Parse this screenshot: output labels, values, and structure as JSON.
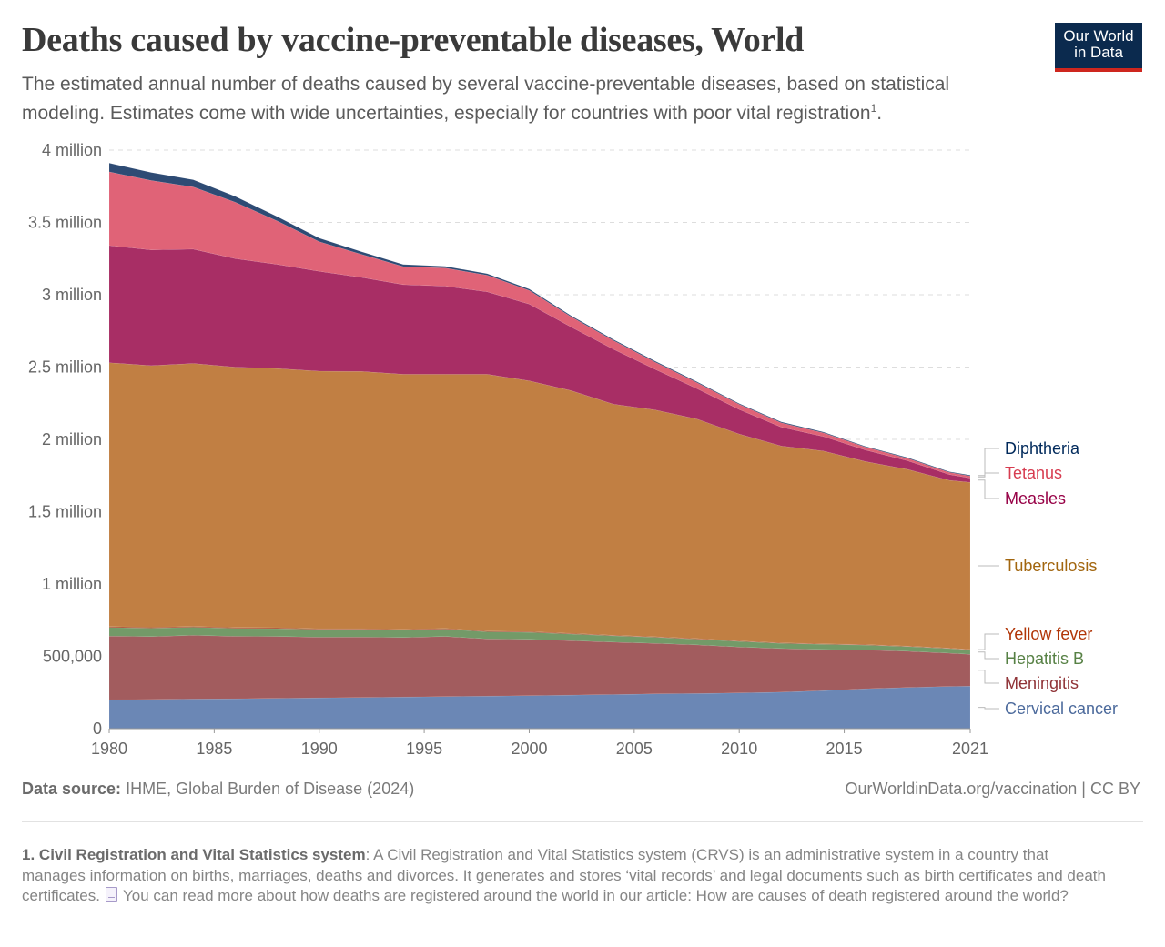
{
  "header": {
    "title": "Deaths caused by vaccine-preventable diseases, World",
    "subtitle": "The estimated annual number of deaths caused by several vaccine-preventable diseases, based on statistical modeling. Estimates come with wide uncertainties, especially for countries with poor vital registration",
    "subtitle_ref": "1",
    "subtitle_end": "."
  },
  "logo": {
    "line1": "Our World",
    "line2": "in Data",
    "bg_color": "#0b2a4e",
    "accent_color": "#ce261e"
  },
  "footer": {
    "source_label": "Data source:",
    "source_text": "IHME, Global Burden of Disease (2024)",
    "license": "OurWorldinData.org/vaccination | CC BY"
  },
  "footnote": {
    "number": "1.",
    "term": "Civil Registration and Vital Statistics system",
    "text": ": A Civil Registration and Vital Statistics system (CRVS) is an administrative system in a country that manages information on births, marriages, deaths and divorces. It generates and stores ‘vital records’ and legal documents such as birth certificates and death certificates.",
    "link_text": "You can read more about how deaths are registered around the world in our article: How are causes of death registered around the world?",
    "icon": "document-icon"
  },
  "chart_data": {
    "type": "area",
    "stacked": true,
    "title": "Deaths caused by vaccine-preventable diseases, World",
    "xlabel": "",
    "ylabel": "",
    "xlim": [
      1980,
      2021
    ],
    "ylim": [
      0,
      4000000
    ],
    "x_ticks": [
      "1980",
      "1985",
      "1990",
      "1995",
      "2000",
      "2005",
      "2010",
      "2015",
      "2021"
    ],
    "y_ticks": [
      {
        "value": 0,
        "label": "0"
      },
      {
        "value": 500000,
        "label": "500,000"
      },
      {
        "value": 1000000,
        "label": "1 million"
      },
      {
        "value": 1500000,
        "label": "1.5 million"
      },
      {
        "value": 2000000,
        "label": "2 million"
      },
      {
        "value": 2500000,
        "label": "2.5 million"
      },
      {
        "value": 3000000,
        "label": "3 million"
      },
      {
        "value": 3500000,
        "label": "3.5 million"
      },
      {
        "value": 4000000,
        "label": "4 million"
      }
    ],
    "grid": true,
    "legend_position": "right",
    "x": [
      1980,
      1982,
      1984,
      1986,
      1988,
      1990,
      1992,
      1994,
      1996,
      1998,
      2000,
      2002,
      2004,
      2006,
      2008,
      2010,
      2012,
      2014,
      2016,
      2018,
      2020,
      2021
    ],
    "series": [
      {
        "name": "Cervical cancer",
        "color": "#6b87b5",
        "label_color": "#4c6a9c",
        "values": [
          200000,
          202000,
          205000,
          207000,
          210000,
          213000,
          216000,
          219000,
          222000,
          225000,
          228000,
          232000,
          236000,
          240000,
          243000,
          247000,
          252000,
          262000,
          276000,
          285000,
          292000,
          294000
        ]
      },
      {
        "name": "Meningitis",
        "color": "#a25c5e",
        "label_color": "#8f3236",
        "values": [
          440000,
          435000,
          440000,
          432000,
          428000,
          420000,
          418000,
          412000,
          416000,
          396000,
          390000,
          376000,
          362000,
          350000,
          336000,
          318000,
          302000,
          286000,
          268000,
          250000,
          230000,
          220000
        ]
      },
      {
        "name": "Hepatitis B",
        "color": "#739a68",
        "label_color": "#578145",
        "values": [
          60000,
          58000,
          56000,
          55000,
          54000,
          53000,
          52000,
          51000,
          50000,
          49000,
          48000,
          46000,
          44000,
          42000,
          40000,
          38000,
          36000,
          35000,
          34000,
          33000,
          32000,
          31000
        ]
      },
      {
        "name": "Yellow fever",
        "color": "#a84d2e",
        "label_color": "#b13507",
        "values": [
          6000,
          6000,
          6000,
          6000,
          6000,
          5000,
          5000,
          5000,
          5000,
          5000,
          5000,
          5000,
          4000,
          4000,
          4000,
          4000,
          4000,
          4000,
          4000,
          3000,
          3000,
          3000
        ]
      },
      {
        "name": "Tuberculosis",
        "color": "#c17f43",
        "label_color": "#a2660f",
        "values": [
          1824000,
          1809000,
          1818000,
          1800000,
          1792000,
          1781000,
          1779000,
          1763000,
          1757000,
          1775000,
          1734000,
          1678000,
          1598000,
          1568000,
          1517000,
          1430000,
          1361000,
          1333000,
          1265000,
          1222000,
          1160000,
          1155000
        ]
      },
      {
        "name": "Measles",
        "color": "#a82e65",
        "label_color": "#970046",
        "values": [
          810000,
          800000,
          790000,
          750000,
          720000,
          690000,
          650000,
          620000,
          610000,
          570000,
          530000,
          440000,
          380000,
          280000,
          210000,
          170000,
          130000,
          100000,
          80000,
          60000,
          40000,
          30000
        ]
      },
      {
        "name": "Tetanus",
        "color": "#e06377",
        "label_color": "#d73c50",
        "values": [
          510000,
          480000,
          430000,
          390000,
          300000,
          205000,
          160000,
          125000,
          125000,
          115000,
          95000,
          70000,
          60000,
          50000,
          42000,
          35000,
          30000,
          25000,
          20000,
          17000,
          15000,
          14000
        ]
      },
      {
        "name": "Diphtheria",
        "color": "#2e4b74",
        "label_color": "#00295b",
        "values": [
          60000,
          55000,
          50000,
          40000,
          30000,
          24000,
          18000,
          14000,
          12000,
          10000,
          9000,
          8000,
          7000,
          7000,
          6000,
          6000,
          6000,
          6000,
          5000,
          5000,
          5000,
          5000
        ]
      }
    ]
  }
}
